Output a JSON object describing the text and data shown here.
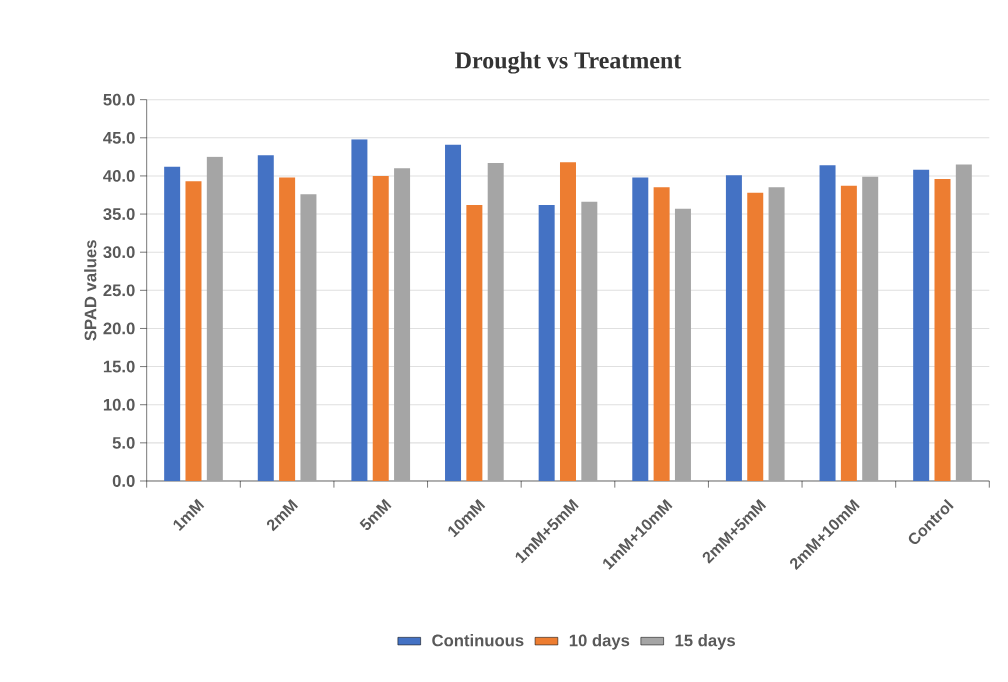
{
  "chart_data": {
    "type": "bar",
    "title": "Drought vs Treatment",
    "ylabel": "SPAD values",
    "categories": [
      "1mM",
      "2mM",
      "5mM",
      "10mM",
      "1mM+5mM",
      "1mM+10mM",
      "2mM+5mM",
      "2mM+10mM",
      "Control"
    ],
    "series": [
      {
        "name": "Continuous",
        "color": "#4472c4",
        "values": [
          41.2,
          42.7,
          44.8,
          44.1,
          36.2,
          39.8,
          40.1,
          41.4,
          40.8
        ]
      },
      {
        "name": "10 days",
        "color": "#ed7d31",
        "values": [
          39.3,
          39.8,
          40.0,
          36.2,
          41.8,
          38.5,
          37.8,
          38.7,
          39.6
        ]
      },
      {
        "name": "15 days",
        "color": "#a5a5a5",
        "values": [
          42.5,
          37.6,
          41.0,
          41.7,
          36.6,
          35.7,
          38.5,
          39.9,
          41.5
        ]
      }
    ],
    "ylim": [
      0,
      50
    ],
    "yticks": [
      {
        "value": 0,
        "label": "0.0"
      },
      {
        "value": 5,
        "label": "5.0"
      },
      {
        "value": 10,
        "label": "10.0"
      },
      {
        "value": 15,
        "label": "15.0"
      },
      {
        "value": 20,
        "label": "20.0"
      },
      {
        "value": 25,
        "label": "25.0"
      },
      {
        "value": 30,
        "label": "30.0"
      },
      {
        "value": 35,
        "label": "35.0"
      },
      {
        "value": 40,
        "label": "40.0"
      },
      {
        "value": 45,
        "label": "45.0"
      },
      {
        "value": 50,
        "label": "50.0"
      }
    ],
    "grid": "y",
    "legend": "bottom"
  }
}
